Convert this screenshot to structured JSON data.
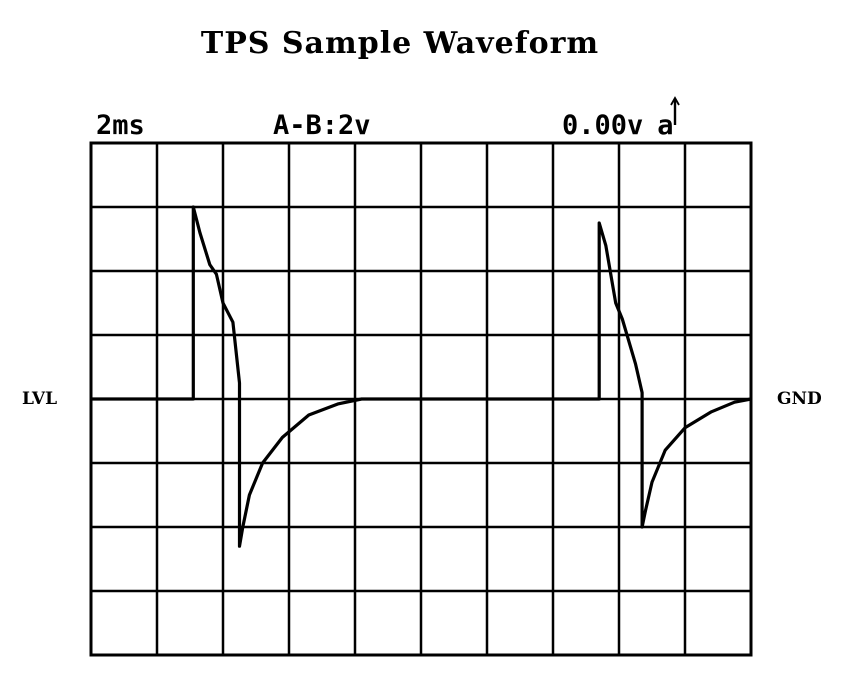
{
  "title": "TPS Sample Waveform",
  "header": {
    "timebase": "2ms",
    "channel": "A-B:2v",
    "trigger_level": "0.00v",
    "trigger_channel": "a"
  },
  "side_labels": {
    "left": "LVL",
    "right": "GND"
  },
  "colors": {
    "trace": "#000000",
    "grid": "#000000",
    "background": "#ffffff"
  },
  "chart_data": {
    "type": "line",
    "title": "TPS Sample Waveform",
    "xlabel": "",
    "ylabel": "",
    "grid": true,
    "x_units": "ms",
    "y_units": "V",
    "x_divisions": 10,
    "y_divisions": 8,
    "time_per_division": 2,
    "volts_per_division": 2,
    "xlim": [
      0,
      20
    ],
    "ylim": [
      -8,
      8
    ],
    "series": [
      {
        "x": [
          0,
          3.1,
          3.1,
          3.3,
          3.6,
          3.8,
          4.0,
          4.3,
          4.5,
          4.5,
          4.6,
          4.8,
          5.2,
          5.8,
          6.6,
          7.5,
          8.2,
          8.5,
          15.4,
          15.4,
          15.6,
          15.9,
          16.1,
          16.5,
          16.7,
          16.7,
          16.8,
          17.0,
          17.4,
          18.0,
          18.8,
          19.5,
          20
        ],
        "y": [
          0,
          0,
          6.0,
          5.2,
          4.2,
          3.9,
          3.0,
          2.4,
          0.5,
          -4.6,
          -4.0,
          -3.0,
          -2.0,
          -1.2,
          -0.5,
          -0.15,
          0,
          0,
          0,
          5.5,
          4.8,
          3.0,
          2.5,
          1.1,
          0.2,
          -4.0,
          -3.5,
          -2.6,
          -1.6,
          -0.9,
          -0.4,
          -0.1,
          0
        ]
      }
    ]
  }
}
